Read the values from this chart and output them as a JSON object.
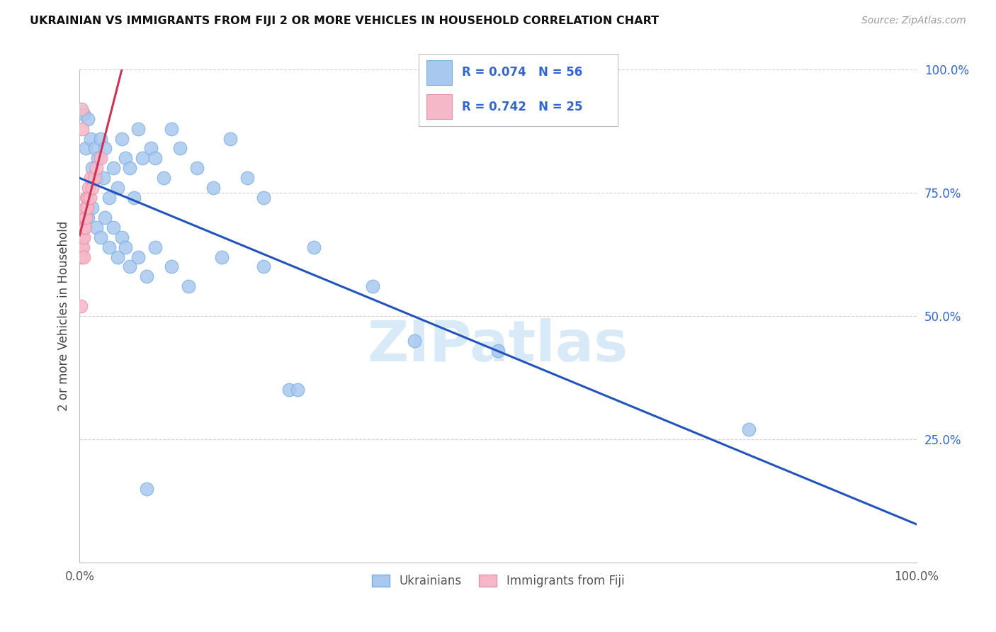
{
  "title": "UKRAINIAN VS IMMIGRANTS FROM FIJI 2 OR MORE VEHICLES IN HOUSEHOLD CORRELATION CHART",
  "source": "Source: ZipAtlas.com",
  "ylabel_left": "2 or more Vehicles in Household",
  "legend_sublabel1": "Ukrainians",
  "legend_sublabel2": "Immigrants from Fiji",
  "R_blue": 0.074,
  "N_blue": 56,
  "R_pink": 0.742,
  "N_pink": 25,
  "blue_color": "#a8c8ef",
  "blue_edge_color": "#7aaede",
  "pink_color": "#f5b8c8",
  "pink_edge_color": "#e890a8",
  "blue_line_color": "#2255bb",
  "pink_line_color": "#cc3355",
  "watermark_color": "#d8eaf8",
  "watermark": "ZIPatlas",
  "grid_color": "#d0d0d0",
  "tick_label_color": "#3366cc",
  "title_color": "#111111",
  "source_color": "#999999",
  "ylabel_color": "#444444",
  "blue_points": [
    [
      0.5,
      91.0
    ],
    [
      0.7,
      84.0
    ],
    [
      1.0,
      90.0
    ],
    [
      1.3,
      86.0
    ],
    [
      1.5,
      80.0
    ],
    [
      1.8,
      84.0
    ],
    [
      2.0,
      78.0
    ],
    [
      2.2,
      82.0
    ],
    [
      2.5,
      86.0
    ],
    [
      2.8,
      78.0
    ],
    [
      3.0,
      84.0
    ],
    [
      3.5,
      74.0
    ],
    [
      4.0,
      80.0
    ],
    [
      4.5,
      76.0
    ],
    [
      5.0,
      86.0
    ],
    [
      5.5,
      82.0
    ],
    [
      6.0,
      80.0
    ],
    [
      6.5,
      74.0
    ],
    [
      7.0,
      88.0
    ],
    [
      7.5,
      82.0
    ],
    [
      8.5,
      84.0
    ],
    [
      9.0,
      82.0
    ],
    [
      10.0,
      78.0
    ],
    [
      11.0,
      88.0
    ],
    [
      12.0,
      84.0
    ],
    [
      14.0,
      80.0
    ],
    [
      16.0,
      76.0
    ],
    [
      18.0,
      86.0
    ],
    [
      20.0,
      78.0
    ],
    [
      22.0,
      74.0
    ],
    [
      1.0,
      70.0
    ],
    [
      1.5,
      72.0
    ],
    [
      2.0,
      68.0
    ],
    [
      2.5,
      66.0
    ],
    [
      3.0,
      70.0
    ],
    [
      3.5,
      64.0
    ],
    [
      4.0,
      68.0
    ],
    [
      4.5,
      62.0
    ],
    [
      5.0,
      66.0
    ],
    [
      5.5,
      64.0
    ],
    [
      6.0,
      60.0
    ],
    [
      7.0,
      62.0
    ],
    [
      8.0,
      58.0
    ],
    [
      9.0,
      64.0
    ],
    [
      11.0,
      60.0
    ],
    [
      13.0,
      56.0
    ],
    [
      17.0,
      62.0
    ],
    [
      22.0,
      60.0
    ],
    [
      28.0,
      64.0
    ],
    [
      35.0,
      56.0
    ],
    [
      40.0,
      45.0
    ],
    [
      80.0,
      27.0
    ],
    [
      25.0,
      35.0
    ],
    [
      26.0,
      35.0
    ],
    [
      8.0,
      15.0
    ],
    [
      50.0,
      43.0
    ]
  ],
  "pink_points": [
    [
      0.15,
      52.0
    ],
    [
      0.2,
      62.0
    ],
    [
      0.25,
      64.0
    ],
    [
      0.3,
      66.0
    ],
    [
      0.35,
      68.0
    ],
    [
      0.4,
      64.0
    ],
    [
      0.45,
      66.0
    ],
    [
      0.5,
      62.0
    ],
    [
      0.55,
      68.0
    ],
    [
      0.6,
      70.0
    ],
    [
      0.65,
      68.0
    ],
    [
      0.7,
      72.0
    ],
    [
      0.75,
      70.0
    ],
    [
      0.8,
      74.0
    ],
    [
      0.9,
      72.0
    ],
    [
      1.0,
      74.0
    ],
    [
      1.1,
      76.0
    ],
    [
      1.2,
      74.0
    ],
    [
      1.3,
      78.0
    ],
    [
      1.5,
      76.0
    ],
    [
      1.7,
      78.0
    ],
    [
      2.0,
      80.0
    ],
    [
      2.5,
      82.0
    ],
    [
      0.2,
      92.0
    ],
    [
      0.3,
      88.0
    ]
  ],
  "xlim": [
    0,
    100
  ],
  "ylim": [
    0,
    100
  ],
  "xticks": [
    0,
    100
  ],
  "xticklabels": [
    "0.0%",
    "100.0%"
  ],
  "yticks": [
    0,
    25,
    50,
    75,
    100
  ],
  "yticklabels": [
    "",
    "25.0%",
    "50.0%",
    "75.0%",
    "100.0%"
  ]
}
